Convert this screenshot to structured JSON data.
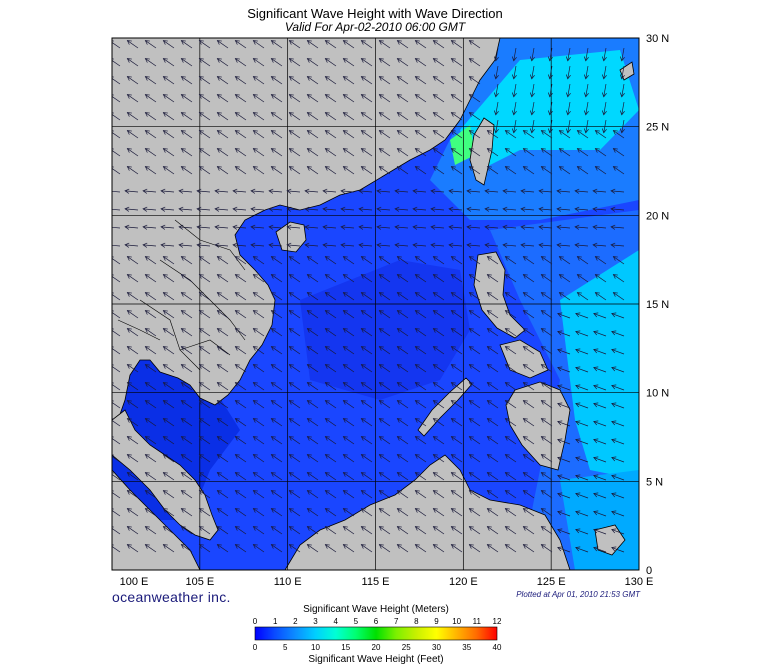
{
  "title": "Significant Wave Height with Wave Direction",
  "subtitle": "Valid For Apr-02-2010 06:00 GMT",
  "brand": "oceanweather inc.",
  "plotted": "Plotted at Apr 01, 2010 21:53 GMT",
  "axes": {
    "lon_labels": [
      "100 E",
      "105 E",
      "110 E",
      "115 E",
      "120 E",
      "125 E",
      "130 E"
    ],
    "lat_labels": [
      "30 N",
      "25 N",
      "20 N",
      "15 N",
      "10 N",
      "5 N",
      "0"
    ]
  },
  "legend": {
    "meters_title": "Significant Wave Height (Meters)",
    "feet_title": "Significant Wave Height (Feet)",
    "meters_ticks": [
      "0",
      "1",
      "2",
      "3",
      "4",
      "5",
      "6",
      "7",
      "8",
      "9",
      "10",
      "11",
      "12"
    ],
    "feet_ticks": [
      "0",
      "5",
      "10",
      "15",
      "20",
      "25",
      "30",
      "35",
      "40"
    ],
    "colors": [
      "#0000ff",
      "#0a4cff",
      "#0c8dff",
      "#00cfff",
      "#00ffd5",
      "#00ff70",
      "#00e000",
      "#7cf000",
      "#c8f000",
      "#ffff00",
      "#ffb400",
      "#ff6a00",
      "#ff0000"
    ]
  },
  "colors": {
    "land": "#c0c0c0",
    "sea_base": "#1a46ff",
    "sea_low": "#0a2fe6",
    "sea_mid": "#1c6cff",
    "sea_high": "#00d8ff",
    "sea_peak": "#40ff80",
    "grid": "#000000",
    "coast": "#000000"
  }
}
